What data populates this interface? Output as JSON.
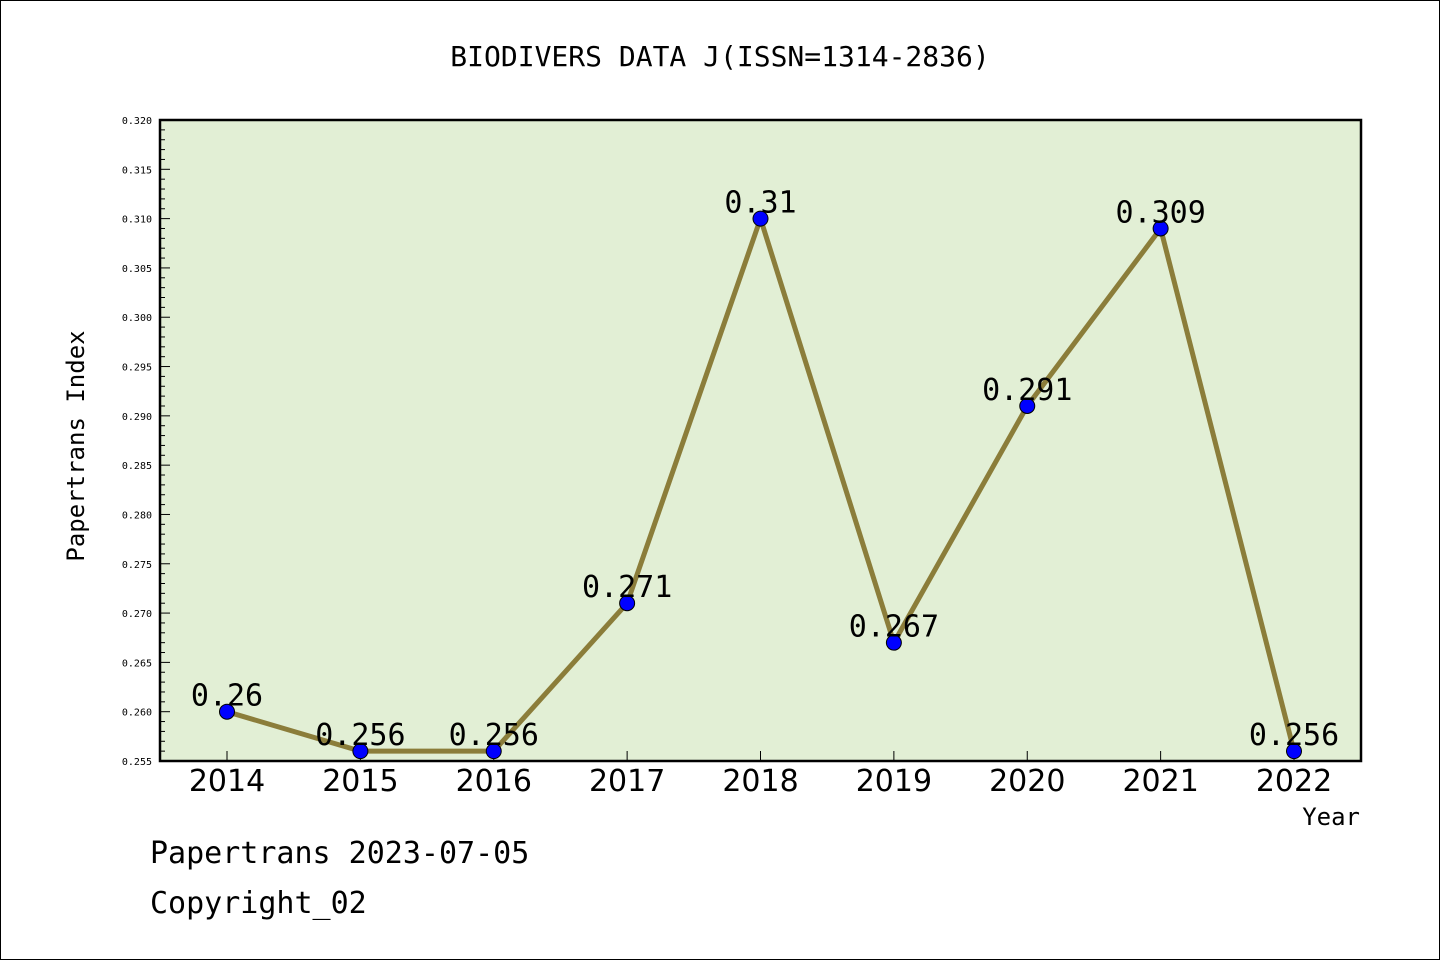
{
  "chart_data": {
    "type": "line",
    "title": "BIODIVERS DATA J(ISSN=1314-2836)",
    "xlabel": "Year",
    "ylabel": "Papertrans Index",
    "categories": [
      "2014",
      "2015",
      "2016",
      "2017",
      "2018",
      "2019",
      "2020",
      "2021",
      "2022"
    ],
    "series": [
      {
        "values": [
          0.26,
          0.256,
          0.256,
          0.271,
          0.31,
          0.267,
          0.291,
          0.309,
          0.256
        ],
        "labels": [
          "0.26",
          "0.256",
          "0.256",
          "0.271",
          "0.31",
          "0.267",
          "0.291",
          "0.309",
          "0.256"
        ]
      }
    ],
    "ylim": [
      0.255,
      0.32
    ],
    "yticks": [
      "0.255",
      "0.260",
      "0.265",
      "0.270",
      "0.275",
      "0.280",
      "0.285",
      "0.290",
      "0.295",
      "0.300",
      "0.305",
      "0.310",
      "0.315",
      "0.320"
    ],
    "grid": false,
    "colors": {
      "plot_background": "#e2efd5",
      "line": "#8b7d3a",
      "marker": "#0000ff"
    }
  },
  "footer": {
    "date_text": "Papertrans 2023-07-05",
    "copyright": "Copyright_02"
  }
}
